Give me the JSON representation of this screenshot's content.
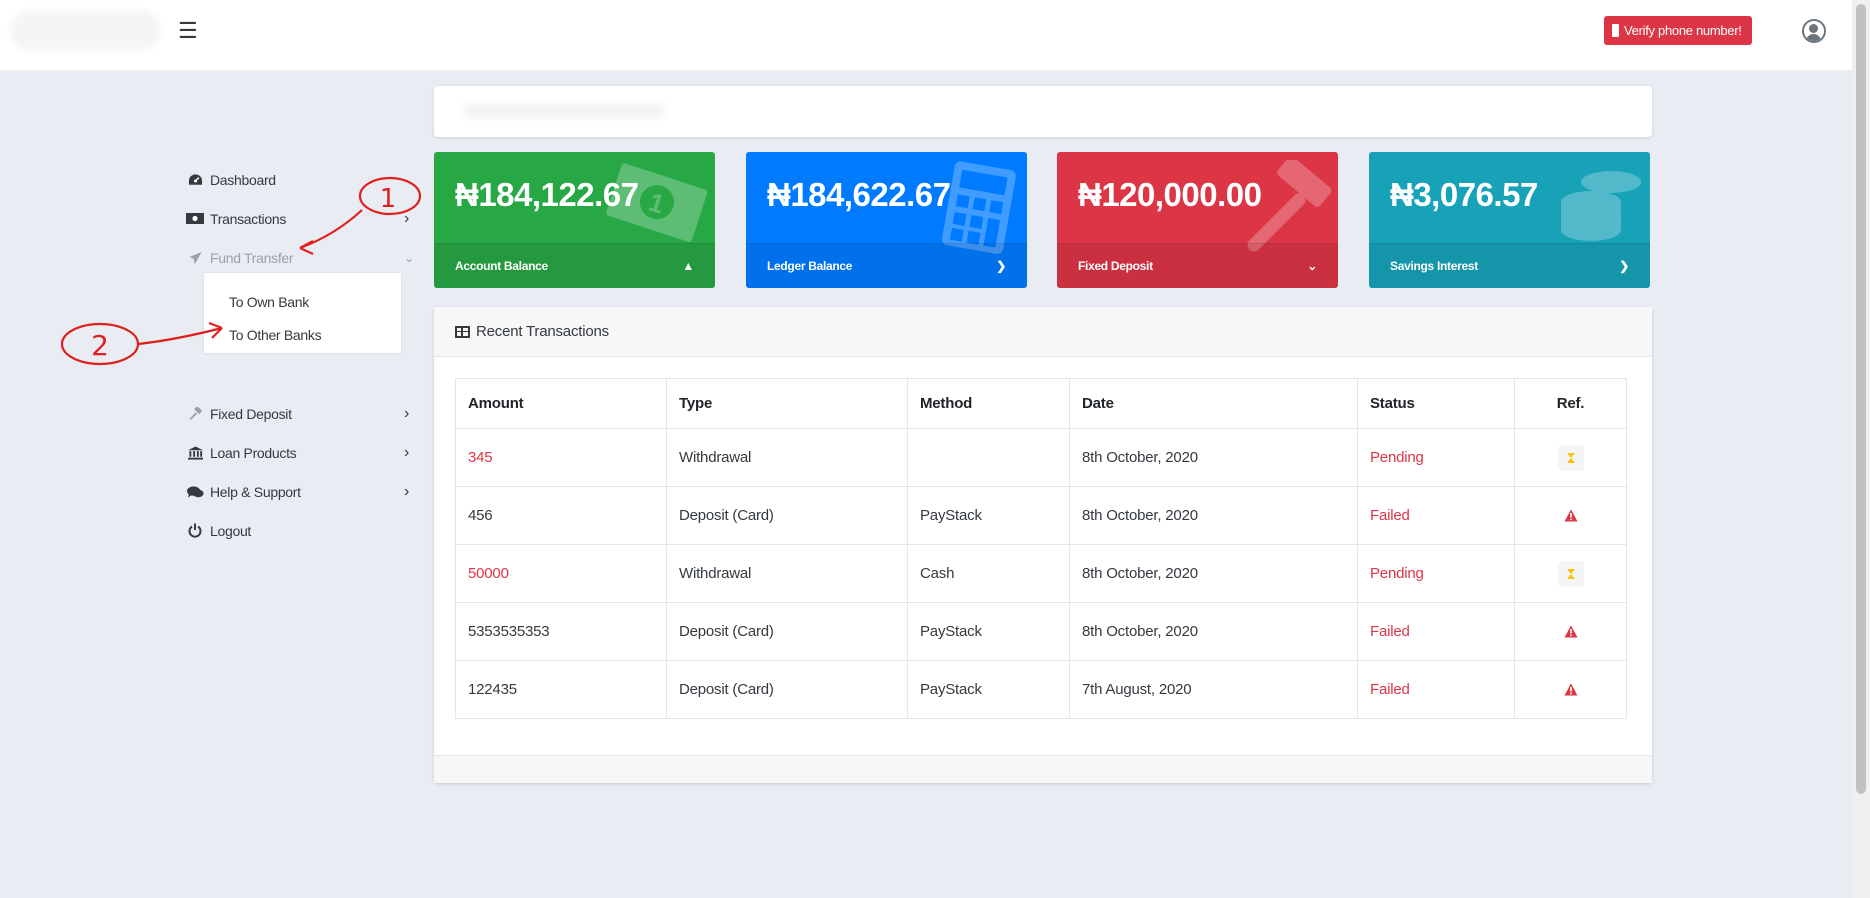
{
  "header": {
    "menu_icon": "hamburger-icon",
    "verify_label": "Verify phone number!",
    "user_icon": "user-circle-icon"
  },
  "sidebar": {
    "items": [
      {
        "label": "Dashboard",
        "icon": "tachometer-icon"
      },
      {
        "label": "Transactions",
        "icon": "money-bill-icon"
      },
      {
        "label": "Fund Transfer",
        "icon": "paper-plane-icon"
      },
      {
        "label": "Fixed Deposit",
        "icon": "hammer-icon"
      },
      {
        "label": "Loan Products",
        "icon": "bank-icon"
      },
      {
        "label": "Help & Support",
        "icon": "comments-icon"
      },
      {
        "label": "Logout",
        "icon": "power-icon"
      }
    ],
    "submenu": [
      {
        "label": "To Own Bank"
      },
      {
        "label": "To Other Banks"
      }
    ]
  },
  "cards": [
    {
      "amount": "₦184,122.67",
      "label": "Account Balance",
      "color": "#28a745",
      "icon": "money-icon"
    },
    {
      "amount": "₦184,622.67",
      "label": "Ledger Balance",
      "color": "#007bff",
      "icon": "calculator-icon"
    },
    {
      "amount": "₦120,000.00",
      "label": "Fixed Deposit",
      "color": "#dc3545",
      "icon": "hammer-icon"
    },
    {
      "amount": "₦3,076.57",
      "label": "Savings Interest",
      "color": "#17a2b8",
      "icon": "coins-icon"
    }
  ],
  "transactions": {
    "title": "Recent Transactions",
    "columns": [
      "Amount",
      "Type",
      "Method",
      "Date",
      "Status",
      "Ref."
    ],
    "rows": [
      {
        "amount": "345",
        "type": "Withdrawal",
        "method": "",
        "date": "8th October, 2020",
        "status": "Pending",
        "ref_icon": "hourglass-icon"
      },
      {
        "amount": "456",
        "type": "Deposit (Card)",
        "method": "PayStack",
        "date": "8th October, 2020",
        "status": "Failed",
        "ref_icon": "warning-icon"
      },
      {
        "amount": "50000",
        "type": "Withdrawal",
        "method": "Cash",
        "date": "8th October, 2020",
        "status": "Pending",
        "ref_icon": "hourglass-icon"
      },
      {
        "amount": "5353535353",
        "type": "Deposit (Card)",
        "method": "PayStack",
        "date": "8th October, 2020",
        "status": "Failed",
        "ref_icon": "warning-icon"
      },
      {
        "amount": "122435",
        "type": "Deposit (Card)",
        "method": "PayStack",
        "date": "7th August, 2020",
        "status": "Failed",
        "ref_icon": "warning-icon"
      }
    ]
  },
  "annotations": {
    "marker_1": "1",
    "marker_2": "2",
    "color": "#e0201e"
  }
}
